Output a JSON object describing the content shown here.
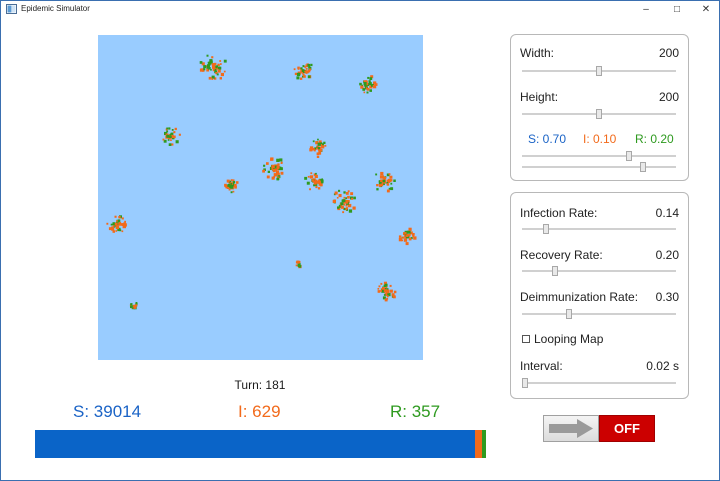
{
  "window": {
    "title": "Epidemic Simulator"
  },
  "status": {
    "turn_label": "Turn: 181",
    "s_label": "S: 39014",
    "i_label": "I: 629",
    "r_label": "R: 357"
  },
  "population_bar": {
    "s": 39014,
    "i": 629,
    "r": 357,
    "colors": {
      "s": "#0a64c8",
      "i": "#f26a1b",
      "r": "#2e9a1f"
    }
  },
  "map": {
    "background": "#99ccff",
    "infected_color": "#f26a1b",
    "recovered_color": "#2e9a1f"
  },
  "grid_settings": {
    "width_label": "Width:",
    "width_value": "200",
    "width_level": 0.5,
    "height_label": "Height:",
    "height_value": "200",
    "height_level": 0.5,
    "s_ratio": "S: 0.70",
    "i_ratio": "I: 0.10",
    "r_ratio": "R: 0.20",
    "s_level": 0.7,
    "si_level": 0.8
  },
  "rates": {
    "infection_label": "Infection Rate:",
    "infection_value": "0.14",
    "infection_level": 0.14,
    "recovery_label": "Recovery Rate:",
    "recovery_value": "0.20",
    "recovery_level": 0.2,
    "deimmunization_label": "Deimmunization Rate:",
    "deimmunization_value": "0.30",
    "deimmunization_level": 0.3,
    "looping_label": "Looping Map",
    "looping_checked": false,
    "interval_label": "Interval:",
    "interval_value": "0.02 s",
    "interval_level": 0.0
  },
  "run_button": {
    "label": "OFF",
    "icon": "arrow-right-icon"
  }
}
